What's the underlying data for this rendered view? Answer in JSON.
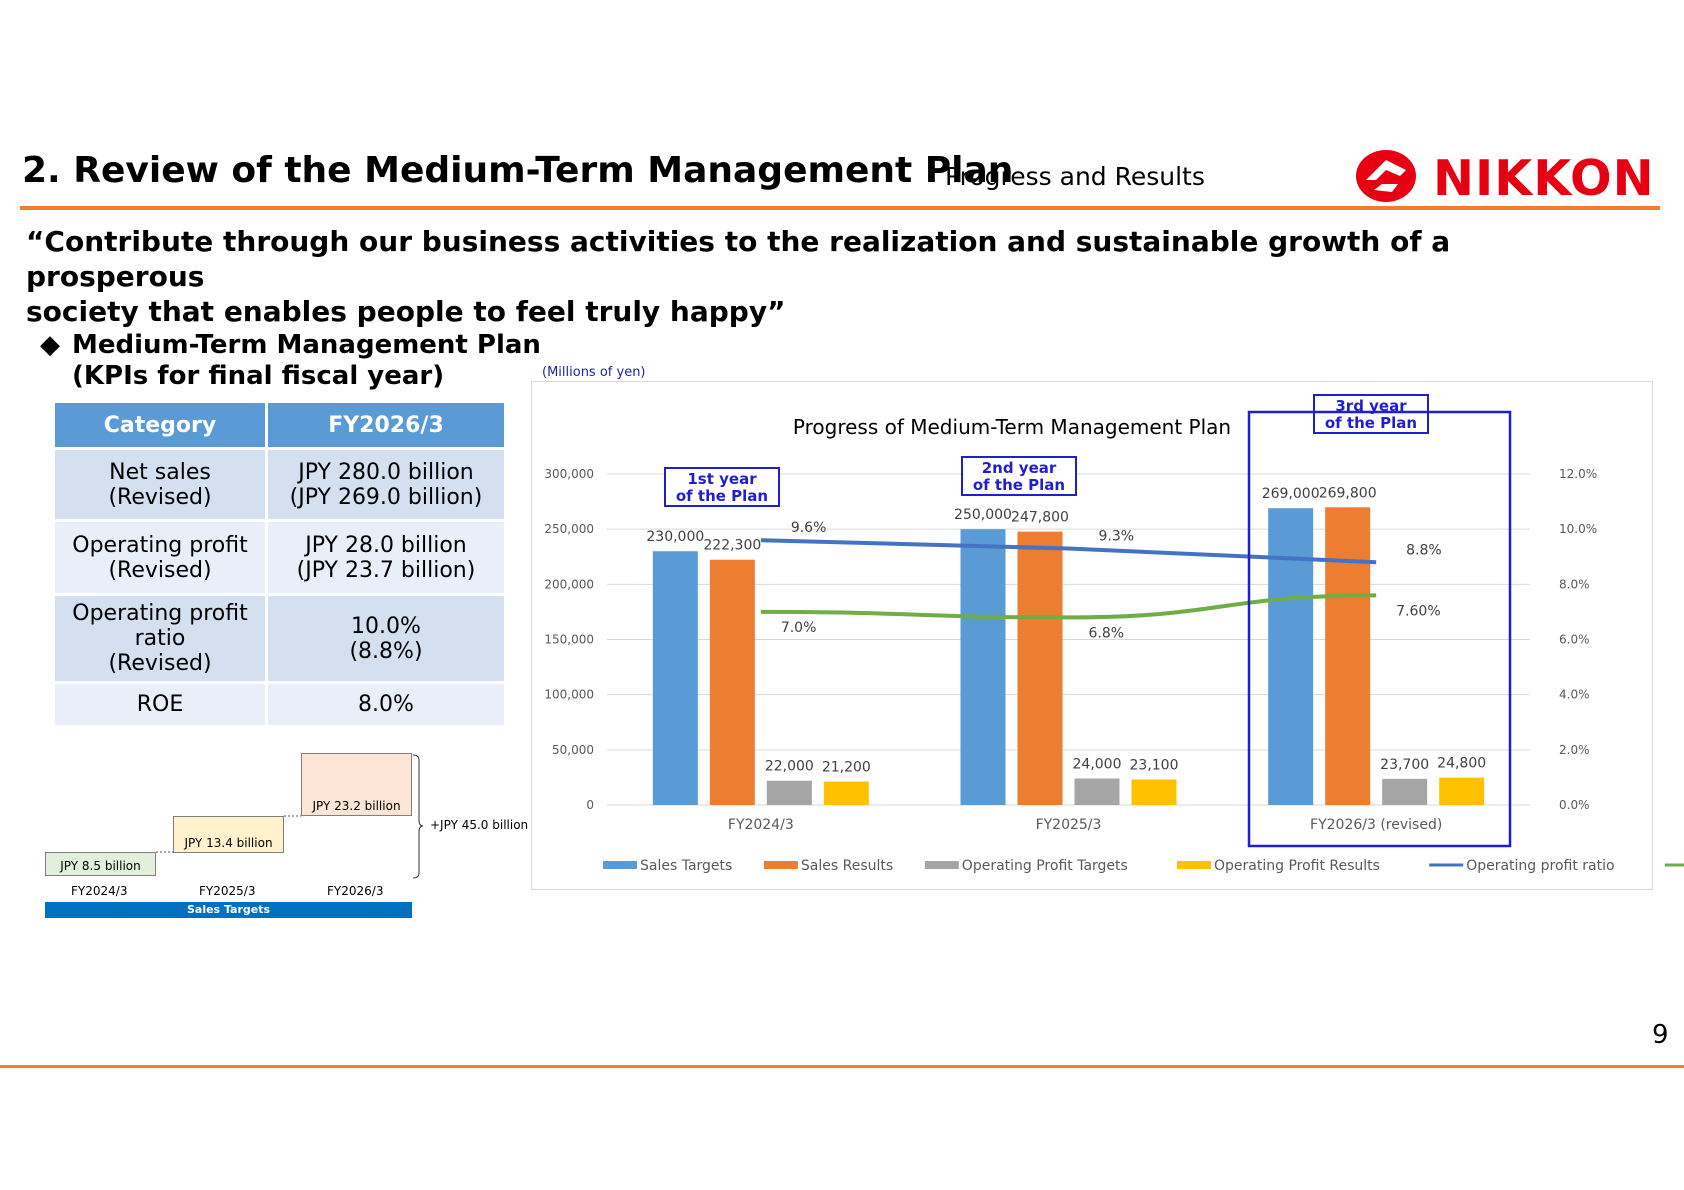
{
  "header": {
    "title": "2. Review of the Medium-Term Management Plan",
    "subtitle": "Progress and Results",
    "logo_text": "NIKKON",
    "accent_color": "#ED7D31",
    "logo_color": "#E60012"
  },
  "slogan": {
    "line1": "“Contribute through our business activities to the realization and sustainable growth of a prosperous",
    "line2": "society that enables people to feel truly happy”"
  },
  "kpi": {
    "heading_line1": "Medium-Term Management Plan",
    "heading_line2": "(KPIs for final fiscal year)",
    "columns": [
      "Category",
      "FY2026/3"
    ],
    "rows": [
      {
        "category": [
          "Net sales",
          "(Revised)"
        ],
        "value": [
          "JPY 280.0 billion",
          "(JPY 269.0 billion)"
        ]
      },
      {
        "category": [
          "Operating profit",
          "(Revised)"
        ],
        "value": [
          "JPY 28.0 billion",
          "(JPY 23.7 billion)"
        ]
      },
      {
        "category": [
          "Operating profit",
          "ratio",
          "(Revised)"
        ],
        "value": [
          "10.0%",
          "(8.8%)"
        ]
      },
      {
        "category": [
          "ROE"
        ],
        "value": [
          "8.0%"
        ]
      }
    ]
  },
  "sales_steps": {
    "steps": [
      {
        "label": "JPY 8.5 billion",
        "year": "FY2024/3",
        "color": "#E2EFDA"
      },
      {
        "label": "JPY 13.4 billion",
        "year": "FY2025/3",
        "color": "#FFF2CC"
      },
      {
        "label": "JPY 23.2 billion",
        "year": "FY2026/3",
        "color": "#FCE4D6"
      }
    ],
    "total_label": "+JPY 45.0 billion",
    "bar_label": "Sales Targets",
    "bar_color": "#0070C0"
  },
  "chart_units": "(Millions of yen)",
  "plan_labels": [
    "1st year\nof the Plan",
    "2nd year\nof the Plan",
    "3rd year\nof the Plan"
  ],
  "page_number": "9",
  "chart_data": {
    "type": "bar",
    "title": "Progress of Medium-Term Management Plan",
    "categories": [
      "FY2024/3",
      "FY2025/3",
      "FY2026/3 (revised)"
    ],
    "y_left": {
      "ylim": [
        0,
        300000
      ],
      "ticks": [
        "0",
        "50,000",
        "100,000",
        "150,000",
        "200,000",
        "250,000",
        "300,000"
      ]
    },
    "y_right": {
      "ylim": [
        0,
        12
      ],
      "ticks": [
        "0.0%",
        "2.0%",
        "4.0%",
        "6.0%",
        "8.0%",
        "10.0%",
        "12.0%"
      ]
    },
    "series": [
      {
        "name": "Sales Targets",
        "type": "bar",
        "color": "#5B9BD5",
        "values": [
          230000,
          250000,
          269000
        ],
        "labels": [
          "230,000",
          "250,000",
          "269,000"
        ]
      },
      {
        "name": "Sales Results",
        "type": "bar",
        "color": "#ED7D31",
        "values": [
          222300,
          247800,
          269800
        ],
        "labels": [
          "222,300",
          "247,800",
          "269,800"
        ]
      },
      {
        "name": "Operating Profit Targets",
        "type": "bar",
        "color": "#A5A5A5",
        "values": [
          22000,
          24000,
          23700
        ],
        "labels": [
          "22,000",
          "24,000",
          "23,700"
        ]
      },
      {
        "name": "Operating Profit Results",
        "type": "bar",
        "color": "#FFC000",
        "values": [
          21200,
          23100,
          24800
        ],
        "labels": [
          "21,200",
          "23,100",
          "24,800"
        ]
      },
      {
        "name": "Operating profit ratio",
        "type": "line",
        "axis": "right",
        "color": "#4472C4",
        "values": [
          9.6,
          9.3,
          8.8
        ],
        "labels": [
          "9.6%",
          "9.3%",
          "8.8%"
        ]
      },
      {
        "name": "ROE",
        "type": "line",
        "axis": "right",
        "color": "#70AD47",
        "values": [
          7.0,
          6.8,
          7.6
        ],
        "labels": [
          "7.0%",
          "6.8%",
          "7.60%"
        ]
      }
    ],
    "highlight_category": "FY2026/3 (revised)",
    "legend_position": "bottom",
    "grid": true
  }
}
